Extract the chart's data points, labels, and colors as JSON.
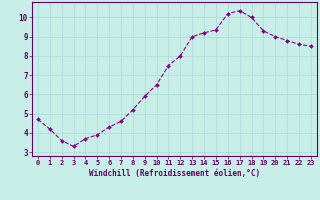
{
  "x": [
    0,
    1,
    2,
    3,
    4,
    5,
    6,
    7,
    8,
    9,
    10,
    11,
    12,
    13,
    14,
    15,
    16,
    17,
    18,
    19,
    20,
    21,
    22,
    23
  ],
  "y": [
    4.7,
    4.2,
    3.6,
    3.3,
    3.7,
    3.9,
    4.3,
    4.6,
    5.2,
    5.9,
    6.5,
    7.5,
    8.0,
    9.0,
    9.2,
    9.35,
    10.2,
    10.35,
    10.0,
    9.3,
    9.0,
    8.8,
    8.6,
    8.5
  ],
  "line_color": "#880088",
  "marker_color": "#880088",
  "bg_color": "#c8eee8",
  "grid_color": "#aad8d8",
  "xlabel": "Windchill (Refroidissement éolien,°C)",
  "xlim": [
    -0.5,
    23.5
  ],
  "ylim": [
    2.8,
    10.8
  ],
  "xticks": [
    0,
    1,
    2,
    3,
    4,
    5,
    6,
    7,
    8,
    9,
    10,
    11,
    12,
    13,
    14,
    15,
    16,
    17,
    18,
    19,
    20,
    21,
    22,
    23
  ],
  "yticks": [
    3,
    4,
    5,
    6,
    7,
    8,
    9,
    10
  ],
  "tick_color": "#660066",
  "font_color": "#660066",
  "spine_color": "#660066",
  "tick_fontsize": 5.0,
  "xlabel_fontsize": 5.5
}
